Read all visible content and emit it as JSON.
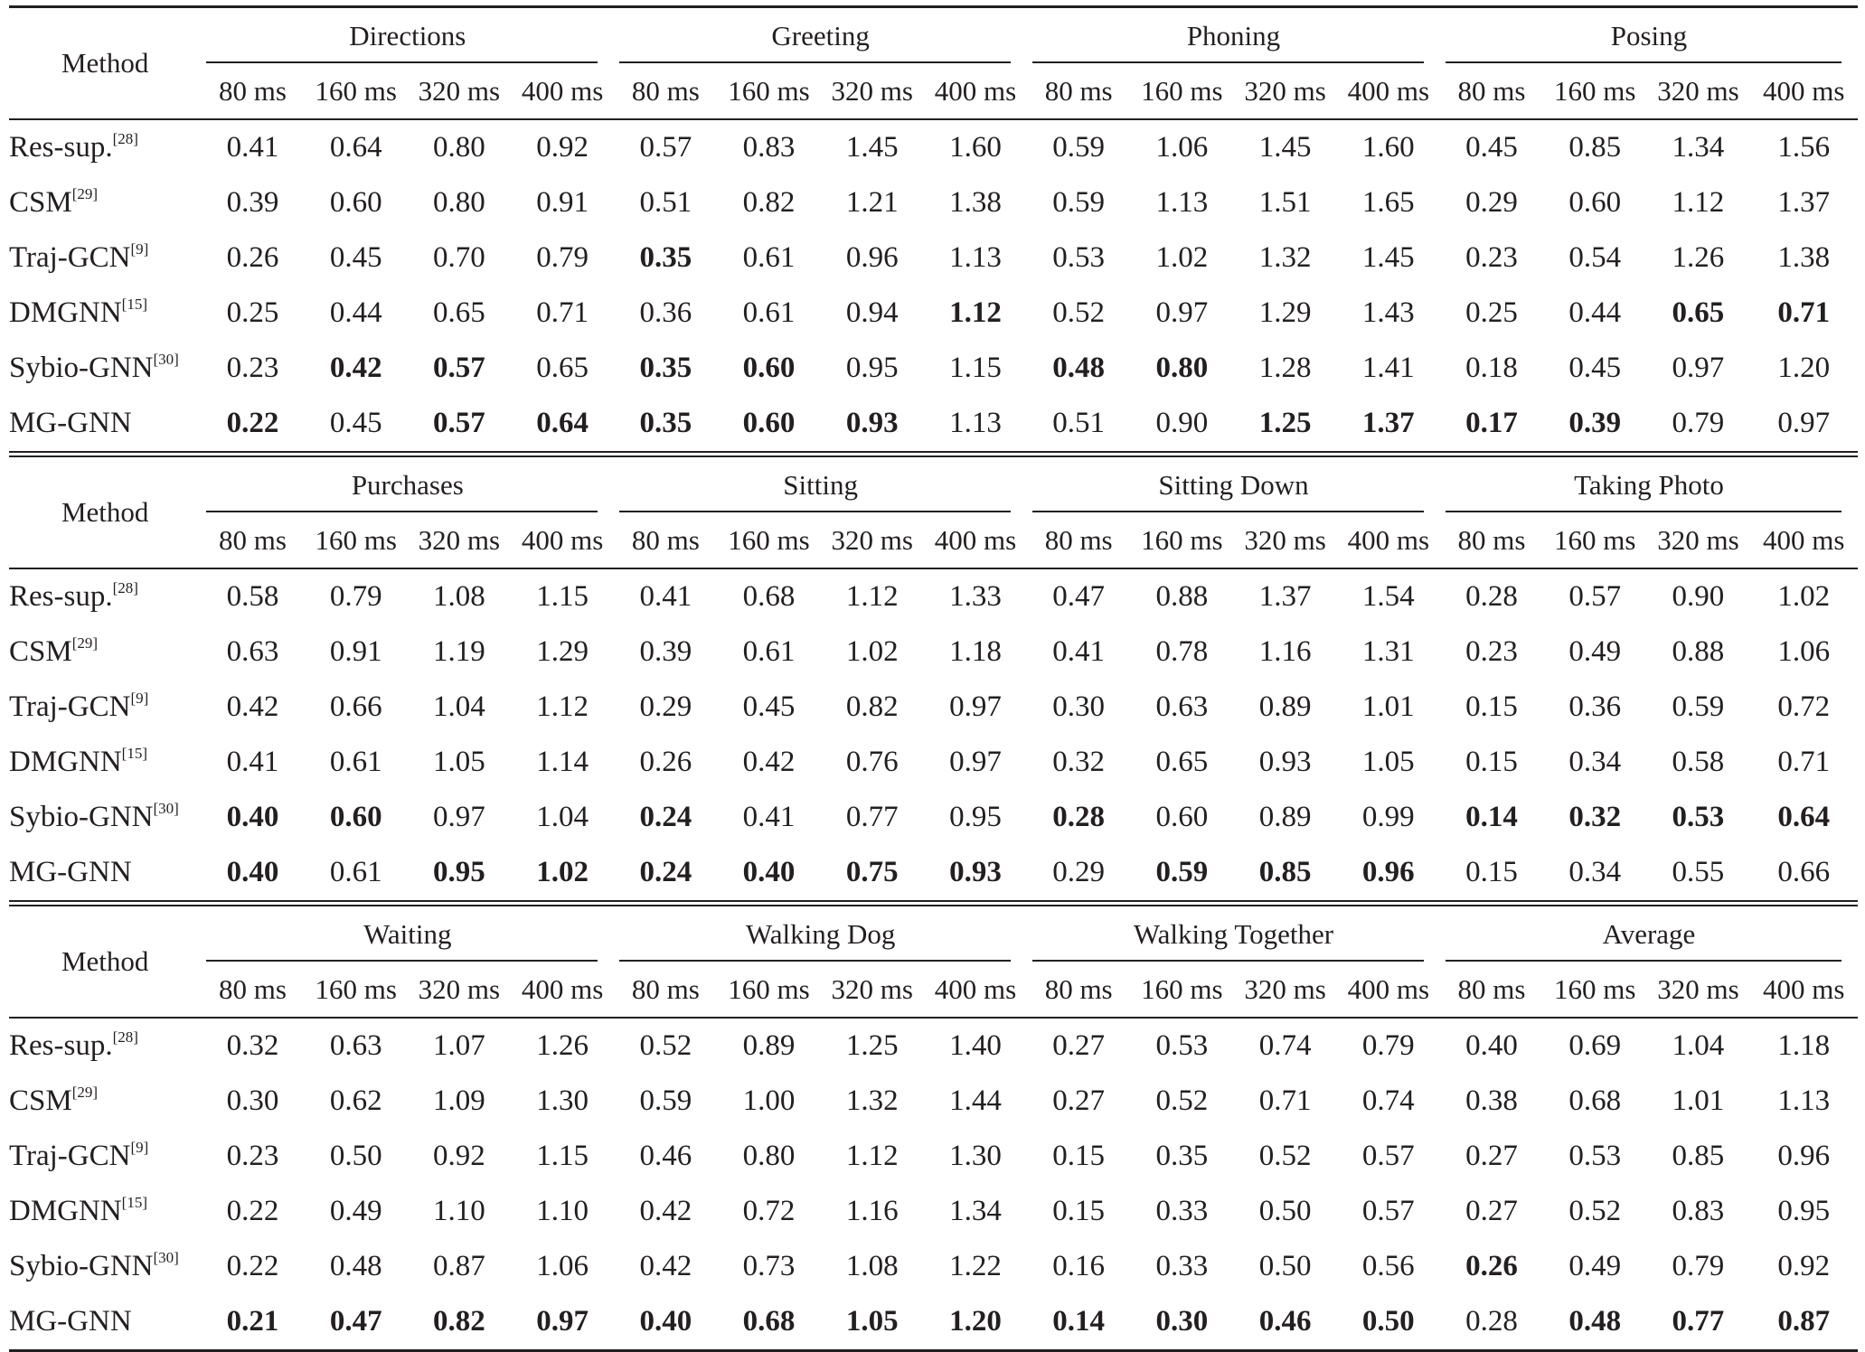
{
  "blocks": [
    {
      "header_label": "Method",
      "groups": [
        "Directions",
        "Greeting",
        "Phoning",
        "Posing"
      ],
      "horizons": [
        "80 ms",
        "160 ms",
        "320 ms",
        "400 ms"
      ],
      "rows": [
        {
          "method": "Res-sup.",
          "ref": "[28]",
          "values": [
            "0.41",
            "0.64",
            "0.80",
            "0.92",
            "0.57",
            "0.83",
            "1.45",
            "1.60",
            "0.59",
            "1.06",
            "1.45",
            "1.60",
            "0.45",
            "0.85",
            "1.34",
            "1.56"
          ],
          "bold": []
        },
        {
          "method": "CSM",
          "ref": "[29]",
          "values": [
            "0.39",
            "0.60",
            "0.80",
            "0.91",
            "0.51",
            "0.82",
            "1.21",
            "1.38",
            "0.59",
            "1.13",
            "1.51",
            "1.65",
            "0.29",
            "0.60",
            "1.12",
            "1.37"
          ],
          "bold": []
        },
        {
          "method": "Traj-GCN",
          "ref": "[9]",
          "values": [
            "0.26",
            "0.45",
            "0.70",
            "0.79",
            "0.35",
            "0.61",
            "0.96",
            "1.13",
            "0.53",
            "1.02",
            "1.32",
            "1.45",
            "0.23",
            "0.54",
            "1.26",
            "1.38"
          ],
          "bold": [
            4
          ]
        },
        {
          "method": "DMGNN",
          "ref": "[15]",
          "values": [
            "0.25",
            "0.44",
            "0.65",
            "0.71",
            "0.36",
            "0.61",
            "0.94",
            "1.12",
            "0.52",
            "0.97",
            "1.29",
            "1.43",
            "0.25",
            "0.44",
            "0.65",
            "0.71"
          ],
          "bold": [
            7,
            14,
            15
          ]
        },
        {
          "method": "Sybio-GNN",
          "ref": "[30]",
          "values": [
            "0.23",
            "0.42",
            "0.57",
            "0.65",
            "0.35",
            "0.60",
            "0.95",
            "1.15",
            "0.48",
            "0.80",
            "1.28",
            "1.41",
            "0.18",
            "0.45",
            "0.97",
            "1.20"
          ],
          "bold": [
            1,
            2,
            4,
            5,
            8,
            9
          ]
        },
        {
          "method": "MG-GNN",
          "ref": "",
          "values": [
            "0.22",
            "0.45",
            "0.57",
            "0.64",
            "0.35",
            "0.60",
            "0.93",
            "1.13",
            "0.51",
            "0.90",
            "1.25",
            "1.37",
            "0.17",
            "0.39",
            "0.79",
            "0.97"
          ],
          "bold": [
            0,
            2,
            3,
            4,
            5,
            6,
            10,
            11,
            12,
            13
          ]
        }
      ]
    },
    {
      "header_label": "Method",
      "groups": [
        "Purchases",
        "Sitting",
        "Sitting Down",
        "Taking Photo"
      ],
      "horizons": [
        "80 ms",
        "160 ms",
        "320 ms",
        "400 ms"
      ],
      "rows": [
        {
          "method": "Res-sup.",
          "ref": "[28]",
          "values": [
            "0.58",
            "0.79",
            "1.08",
            "1.15",
            "0.41",
            "0.68",
            "1.12",
            "1.33",
            "0.47",
            "0.88",
            "1.37",
            "1.54",
            "0.28",
            "0.57",
            "0.90",
            "1.02"
          ],
          "bold": []
        },
        {
          "method": "CSM",
          "ref": "[29]",
          "values": [
            "0.63",
            "0.91",
            "1.19",
            "1.29",
            "0.39",
            "0.61",
            "1.02",
            "1.18",
            "0.41",
            "0.78",
            "1.16",
            "1.31",
            "0.23",
            "0.49",
            "0.88",
            "1.06"
          ],
          "bold": []
        },
        {
          "method": "Traj-GCN",
          "ref": "[9]",
          "values": [
            "0.42",
            "0.66",
            "1.04",
            "1.12",
            "0.29",
            "0.45",
            "0.82",
            "0.97",
            "0.30",
            "0.63",
            "0.89",
            "1.01",
            "0.15",
            "0.36",
            "0.59",
            "0.72"
          ],
          "bold": []
        },
        {
          "method": "DMGNN",
          "ref": "[15]",
          "values": [
            "0.41",
            "0.61",
            "1.05",
            "1.14",
            "0.26",
            "0.42",
            "0.76",
            "0.97",
            "0.32",
            "0.65",
            "0.93",
            "1.05",
            "0.15",
            "0.34",
            "0.58",
            "0.71"
          ],
          "bold": []
        },
        {
          "method": "Sybio-GNN",
          "ref": "[30]",
          "values": [
            "0.40",
            "0.60",
            "0.97",
            "1.04",
            "0.24",
            "0.41",
            "0.77",
            "0.95",
            "0.28",
            "0.60",
            "0.89",
            "0.99",
            "0.14",
            "0.32",
            "0.53",
            "0.64"
          ],
          "bold": [
            0,
            1,
            4,
            8,
            12,
            13,
            14,
            15
          ]
        },
        {
          "method": "MG-GNN",
          "ref": "",
          "values": [
            "0.40",
            "0.61",
            "0.95",
            "1.02",
            "0.24",
            "0.40",
            "0.75",
            "0.93",
            "0.29",
            "0.59",
            "0.85",
            "0.96",
            "0.15",
            "0.34",
            "0.55",
            "0.66"
          ],
          "bold": [
            0,
            2,
            3,
            4,
            5,
            6,
            7,
            9,
            10,
            11
          ]
        }
      ]
    },
    {
      "header_label": "Method",
      "groups": [
        "Waiting",
        "Walking Dog",
        "Walking Together",
        "Average"
      ],
      "horizons": [
        "80 ms",
        "160 ms",
        "320 ms",
        "400 ms"
      ],
      "rows": [
        {
          "method": "Res-sup.",
          "ref": "[28]",
          "values": [
            "0.32",
            "0.63",
            "1.07",
            "1.26",
            "0.52",
            "0.89",
            "1.25",
            "1.40",
            "0.27",
            "0.53",
            "0.74",
            "0.79",
            "0.40",
            "0.69",
            "1.04",
            "1.18"
          ],
          "bold": []
        },
        {
          "method": "CSM",
          "ref": "[29]",
          "values": [
            "0.30",
            "0.62",
            "1.09",
            "1.30",
            "0.59",
            "1.00",
            "1.32",
            "1.44",
            "0.27",
            "0.52",
            "0.71",
            "0.74",
            "0.38",
            "0.68",
            "1.01",
            "1.13"
          ],
          "bold": []
        },
        {
          "method": "Traj-GCN",
          "ref": "[9]",
          "values": [
            "0.23",
            "0.50",
            "0.92",
            "1.15",
            "0.46",
            "0.80",
            "1.12",
            "1.30",
            "0.15",
            "0.35",
            "0.52",
            "0.57",
            "0.27",
            "0.53",
            "0.85",
            "0.96"
          ],
          "bold": []
        },
        {
          "method": "DMGNN",
          "ref": "[15]",
          "values": [
            "0.22",
            "0.49",
            "1.10",
            "1.10",
            "0.42",
            "0.72",
            "1.16",
            "1.34",
            "0.15",
            "0.33",
            "0.50",
            "0.57",
            "0.27",
            "0.52",
            "0.83",
            "0.95"
          ],
          "bold": []
        },
        {
          "method": "Sybio-GNN",
          "ref": "[30]",
          "values": [
            "0.22",
            "0.48",
            "0.87",
            "1.06",
            "0.42",
            "0.73",
            "1.08",
            "1.22",
            "0.16",
            "0.33",
            "0.50",
            "0.56",
            "0.26",
            "0.49",
            "0.79",
            "0.92"
          ],
          "bold": [
            12
          ]
        },
        {
          "method": "MG-GNN",
          "ref": "",
          "values": [
            "0.21",
            "0.47",
            "0.82",
            "0.97",
            "0.40",
            "0.68",
            "1.05",
            "1.20",
            "0.14",
            "0.30",
            "0.46",
            "0.50",
            "0.28",
            "0.48",
            "0.77",
            "0.87"
          ],
          "bold": [
            0,
            1,
            2,
            3,
            4,
            5,
            6,
            7,
            8,
            9,
            10,
            11,
            13,
            14,
            15
          ]
        }
      ]
    }
  ]
}
